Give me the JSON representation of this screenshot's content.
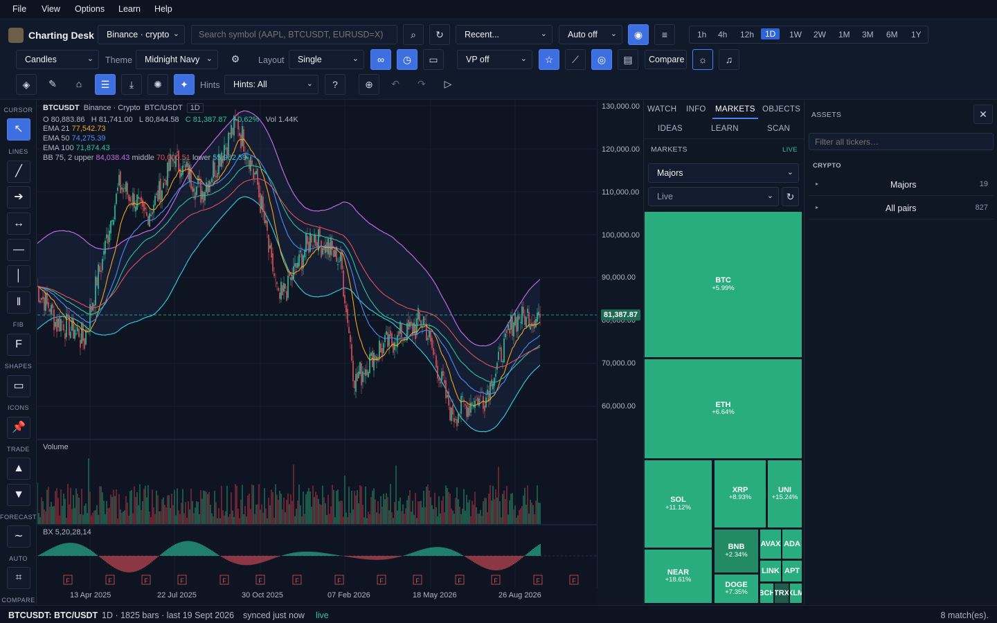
{
  "menu": [
    "File",
    "View",
    "Options",
    "Learn",
    "Help"
  ],
  "app": {
    "title": "Charting Desk"
  },
  "toolbar": {
    "exchange": "Binance · crypto",
    "search_placeholder": "Search symbol (AAPL, BTCUSDT, EURUSD=X)",
    "recent": "Recent...",
    "auto": "Auto off",
    "timeframes": [
      "1h",
      "4h",
      "12h",
      "1D",
      "1W",
      "2W",
      "1M",
      "3M",
      "6M",
      "1Y"
    ],
    "active_timeframe": "1D",
    "chart_type": "Candles",
    "theme_label": "Theme",
    "theme": "Midnight Navy",
    "layout_label": "Layout",
    "layout": "Single",
    "vp": "VP off",
    "compare": "Compare",
    "hints_label": "Hints",
    "hints": "Hints: All"
  },
  "left_tools": {
    "sections": [
      "CURSOR",
      "LINES",
      "FIB",
      "SHAPES",
      "ICONS",
      "TRADE",
      "FORECAST",
      "AUTO",
      "COMPARE"
    ],
    "fib_glyph": "F"
  },
  "chart": {
    "symbol": "BTCUSDT",
    "exchange": "Binance · Crypto",
    "pair": "BTC/USDT",
    "interval": "1D",
    "ohlc": {
      "o": "O 80,883.86",
      "h": "H 81,741.00",
      "l": "L 80,844.58",
      "c": "C 81,387.87",
      "chg": "+0.62%",
      "vol": "Vol 1.44K"
    },
    "indicators": [
      {
        "label": "EMA 21",
        "value": "77,542.73",
        "color": "#f5a623"
      },
      {
        "label": "EMA 50",
        "value": "74,275.39",
        "color": "#4d8ef7"
      },
      {
        "label": "EMA 100",
        "value": "71,874.43",
        "color": "#2ec4a0"
      }
    ],
    "bb": {
      "label": "BB 75, 2",
      "upper_label": "upper",
      "upper": "84,038.43",
      "middle_label": "middle",
      "middle": "70,000.51",
      "lower_label": "lower",
      "lower": "55,962.59"
    },
    "price_tag": "81,387.87",
    "y_ticks": [
      "130,000.00",
      "120,000.00",
      "110,000.00",
      "100,000.00",
      "90,000.00",
      "80,000.00",
      "70,000.00",
      "60,000.00"
    ],
    "x_ticks": [
      "13 Apr 2025",
      "22 Jul 2025",
      "30 Oct 2025",
      "07 Feb 2026",
      "18 May 2026",
      "26 Aug 2026"
    ],
    "volume_label": "Volume",
    "bx_label": "BX 5,20,28,14",
    "marker": "F"
  },
  "panel": {
    "tabs": [
      "WATCH",
      "INFO",
      "MARKETS",
      "OBJECTS"
    ],
    "subtabs": [
      "IDEAS",
      "LEARN",
      "SCAN"
    ],
    "header": "MARKETS",
    "live": "LIVE",
    "group": "Majors",
    "mode": "Live",
    "tiles": [
      {
        "sym": "BTC",
        "chg": "+5.99%"
      },
      {
        "sym": "ETH",
        "chg": "+6.64%"
      },
      {
        "sym": "SOL",
        "chg": "+11.12%"
      },
      {
        "sym": "XRP",
        "chg": "+8.93%"
      },
      {
        "sym": "UNI",
        "chg": "+15.24%"
      },
      {
        "sym": "BNB",
        "chg": "+2.34%"
      },
      {
        "sym": "AVAX",
        "chg": ""
      },
      {
        "sym": "ADA",
        "chg": ""
      },
      {
        "sym": "NEAR",
        "chg": "+18.61%"
      },
      {
        "sym": "LINK",
        "chg": ""
      },
      {
        "sym": "APT",
        "chg": ""
      },
      {
        "sym": "DOGE",
        "chg": "+7.35%"
      },
      {
        "sym": "BCH",
        "chg": ""
      },
      {
        "sym": "TRX",
        "chg": ""
      },
      {
        "sym": "XLM",
        "chg": ""
      }
    ]
  },
  "assets": {
    "title": "ASSETS",
    "filter_placeholder": "Filter all tickers…",
    "category": "CRYPTO",
    "rows": [
      {
        "name": "Majors",
        "count": "19"
      },
      {
        "name": "All pairs",
        "count": "827"
      }
    ]
  },
  "status": {
    "symbol": "BTCUSDT: BTC/USDT",
    "info": "1D · 1825 bars · last 19 Sept 2026",
    "sync": "synced just now",
    "live": "live",
    "matches": "8 match(es)."
  },
  "colors": {
    "accent": "#3e6fe0",
    "up": "#2ec4a0",
    "down": "#e0525c",
    "tile": "#29ad7e",
    "bb": "#c26be0",
    "bb_lower": "#33c6d6"
  }
}
